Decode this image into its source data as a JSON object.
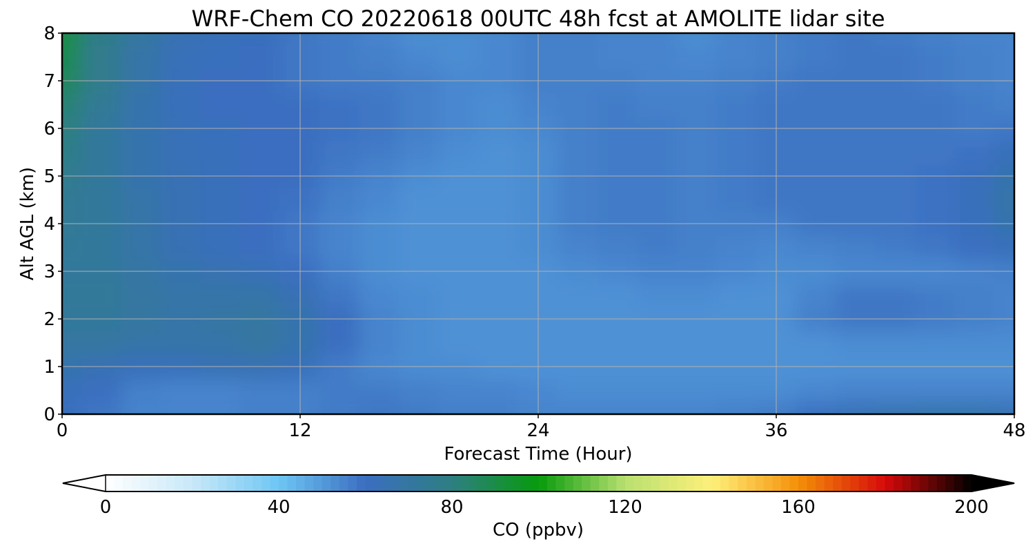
{
  "chart_data": {
    "type": "heatmap",
    "title": "WRF-Chem CO  20220618 00UTC 48h fcst at AMOLITE lidar site",
    "xlabel": "Forecast Time (Hour)",
    "ylabel": "Alt AGL (km)",
    "xlim": [
      0,
      48
    ],
    "ylim": [
      0,
      8
    ],
    "x_ticks": [
      "0",
      "12",
      "24",
      "36",
      "48"
    ],
    "y_ticks": [
      "0",
      "1",
      "2",
      "3",
      "4",
      "5",
      "6",
      "7",
      "8"
    ],
    "grid": true,
    "x": [
      0,
      2,
      4,
      6,
      8,
      10,
      12,
      14,
      16,
      18,
      20,
      22,
      24,
      26,
      28,
      30,
      32,
      34,
      36,
      38,
      40,
      42,
      44,
      46,
      48
    ],
    "y": [
      0,
      0.5,
      1,
      1.5,
      2,
      2.5,
      3,
      3.5,
      4,
      4.5,
      5,
      5.5,
      6,
      6.5,
      7,
      7.5,
      8
    ],
    "z": [
      [
        60,
        58,
        55,
        55,
        55,
        56,
        56,
        57,
        58,
        57,
        56,
        56,
        55,
        55,
        55,
        55,
        55,
        56,
        57,
        60,
        63,
        65,
        66,
        66,
        64
      ],
      [
        62,
        60,
        56,
        55,
        55,
        56,
        56,
        57,
        57,
        56,
        55,
        55,
        54,
        53,
        53,
        53,
        53,
        53,
        53,
        54,
        55,
        55,
        55,
        55,
        55
      ],
      [
        66,
        64,
        62,
        62,
        64,
        64,
        62,
        57,
        54,
        53,
        53,
        52,
        52,
        52,
        52,
        52,
        52,
        52,
        52,
        52,
        52,
        52,
        52,
        52,
        52
      ],
      [
        70,
        70,
        68,
        68,
        68,
        70,
        66,
        60,
        55,
        53,
        52,
        52,
        52,
        52,
        52,
        52,
        52,
        52,
        52,
        52,
        53,
        53,
        53,
        53,
        53
      ],
      [
        72,
        72,
        70,
        68,
        69,
        70,
        66,
        60,
        55,
        53,
        52,
        52,
        52,
        52,
        52,
        52,
        52,
        52,
        52,
        56,
        58,
        58,
        57,
        56,
        55
      ],
      [
        73,
        73,
        70,
        68,
        68,
        68,
        64,
        58,
        54,
        53,
        52,
        52,
        52,
        52,
        52,
        53,
        53,
        52,
        52,
        55,
        58,
        58,
        57,
        56,
        55
      ],
      [
        72,
        72,
        69,
        66,
        65,
        63,
        60,
        56,
        53,
        52,
        52,
        52,
        52,
        53,
        54,
        55,
        55,
        54,
        53,
        53,
        54,
        54,
        54,
        55,
        56
      ],
      [
        73,
        72,
        68,
        64,
        62,
        60,
        58,
        55,
        53,
        52,
        52,
        52,
        53,
        55,
        56,
        57,
        56,
        55,
        54,
        55,
        56,
        57,
        58,
        60,
        62
      ],
      [
        74,
        72,
        68,
        64,
        62,
        60,
        58,
        55,
        53,
        52,
        52,
        52,
        53,
        56,
        57,
        57,
        56,
        56,
        56,
        58,
        58,
        58,
        59,
        61,
        66
      ],
      [
        74,
        72,
        68,
        64,
        62,
        60,
        59,
        56,
        54,
        52,
        52,
        52,
        53,
        56,
        57,
        57,
        56,
        57,
        58,
        58,
        58,
        58,
        59,
        62,
        68
      ],
      [
        76,
        72,
        66,
        64,
        62,
        60,
        60,
        57,
        55,
        53,
        52,
        52,
        53,
        56,
        57,
        57,
        56,
        57,
        58,
        58,
        58,
        58,
        59,
        61,
        66
      ],
      [
        78,
        72,
        66,
        63,
        62,
        60,
        60,
        58,
        57,
        55,
        53,
        52,
        53,
        56,
        57,
        57,
        56,
        57,
        58,
        58,
        58,
        58,
        58,
        59,
        62
      ],
      [
        80,
        72,
        66,
        63,
        61,
        60,
        60,
        59,
        58,
        56,
        54,
        53,
        54,
        56,
        57,
        57,
        56,
        57,
        58,
        58,
        58,
        58,
        58,
        57,
        58
      ],
      [
        82,
        74,
        66,
        62,
        60,
        60,
        60,
        59,
        58,
        56,
        54,
        53,
        55,
        56,
        57,
        56,
        56,
        57,
        58,
        58,
        58,
        58,
        58,
        57,
        56
      ],
      [
        86,
        76,
        68,
        62,
        60,
        60,
        58,
        57,
        57,
        56,
        54,
        54,
        56,
        56,
        56,
        55,
        55,
        56,
        57,
        58,
        58,
        58,
        57,
        56,
        55
      ],
      [
        88,
        76,
        68,
        63,
        61,
        60,
        58,
        57,
        56,
        54,
        53,
        54,
        56,
        56,
        55,
        55,
        54,
        55,
        56,
        57,
        58,
        58,
        57,
        56,
        55
      ],
      [
        90,
        78,
        70,
        64,
        62,
        61,
        58,
        57,
        55,
        53,
        53,
        54,
        56,
        56,
        55,
        55,
        53,
        55,
        56,
        57,
        58,
        57,
        56,
        55,
        55
      ]
    ],
    "colorbar": {
      "label": "CO  (ppbv)",
      "range": [
        0,
        200
      ],
      "ticks": [
        "0",
        "40",
        "80",
        "120",
        "160",
        "200"
      ],
      "extend": "both",
      "orientation": "horizontal",
      "placement": "bottom",
      "colors": [
        "#ffffff",
        "#c8e8f8",
        "#6ec6f4",
        "#3a6ec0",
        "#2e7f82",
        "#079a0c",
        "#b8e070",
        "#fef07a",
        "#f49008",
        "#d60a0a",
        "#000000"
      ]
    }
  }
}
